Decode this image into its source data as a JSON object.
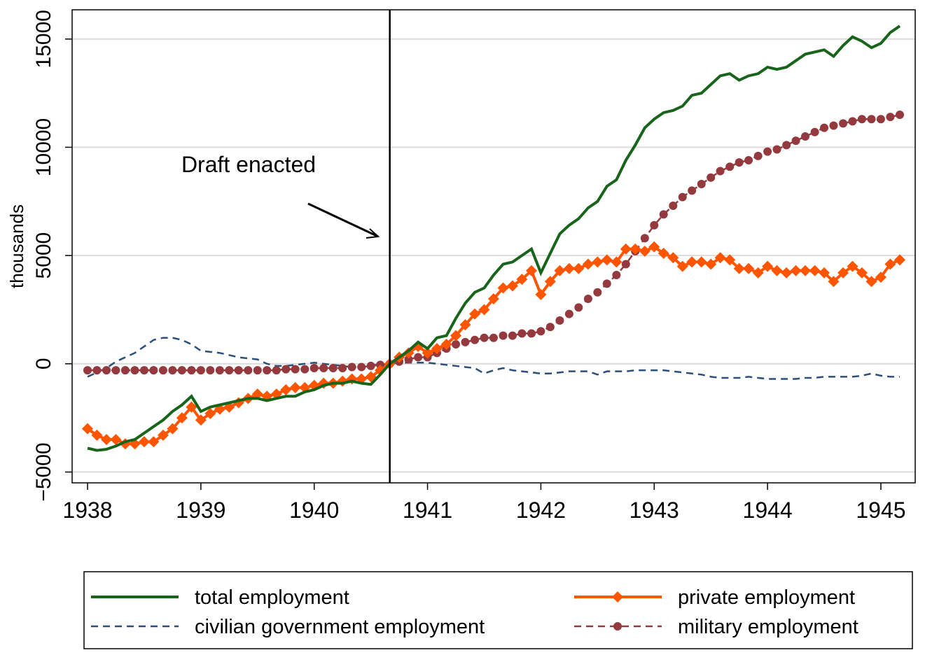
{
  "chart_data": {
    "type": "line",
    "y_label": "thousands",
    "annotation": "Draft enacted",
    "vline": 1940.667,
    "xlim": [
      1937.864,
      1945.303
    ],
    "ylim": [
      -5500,
      16350
    ],
    "xticks": [
      1938,
      1939,
      1940,
      1941,
      1942,
      1943,
      1944,
      1945
    ],
    "yticks": [
      {
        "value": -5000,
        "label": "−5000"
      },
      0,
      5000,
      10000,
      15000
    ],
    "grid": true,
    "legend": "bottom",
    "x": [
      1938,
      1938.083,
      1938.167,
      1938.25,
      1938.333,
      1938.417,
      1938.5,
      1938.583,
      1938.667,
      1938.75,
      1938.833,
      1938.917,
      1939,
      1939.083,
      1939.167,
      1939.25,
      1939.333,
      1939.417,
      1939.5,
      1939.583,
      1939.667,
      1939.75,
      1939.833,
      1939.917,
      1940,
      1940.083,
      1940.167,
      1940.25,
      1940.333,
      1940.417,
      1940.5,
      1940.583,
      1940.667,
      1940.75,
      1940.833,
      1940.917,
      1941,
      1941.083,
      1941.167,
      1941.25,
      1941.333,
      1941.417,
      1941.5,
      1941.583,
      1941.667,
      1941.75,
      1941.833,
      1941.917,
      1942,
      1942.083,
      1942.167,
      1942.25,
      1942.333,
      1942.417,
      1942.5,
      1942.583,
      1942.667,
      1942.75,
      1942.833,
      1942.917,
      1943,
      1943.083,
      1943.167,
      1943.25,
      1943.333,
      1943.417,
      1943.5,
      1943.583,
      1943.667,
      1943.75,
      1943.833,
      1943.917,
      1944,
      1944.083,
      1944.167,
      1944.25,
      1944.333,
      1944.417,
      1944.5,
      1944.583,
      1944.667,
      1944.75,
      1944.833,
      1944.917,
      1945,
      1945.083,
      1945.167
    ],
    "series": [
      {
        "name": "total employment",
        "color": "#17641a",
        "style": "solid",
        "marker": "none",
        "values": [
          -3900,
          -4000,
          -3950,
          -3800,
          -3600,
          -3500,
          -3200,
          -2900,
          -2600,
          -2200,
          -1900,
          -1500,
          -2200,
          -2000,
          -1900,
          -1800,
          -1700,
          -1600,
          -1600,
          -1700,
          -1600,
          -1500,
          -1500,
          -1300,
          -1200,
          -1000,
          -900,
          -900,
          -800,
          -900,
          -950,
          -500,
          0,
          300,
          600,
          1000,
          700,
          1200,
          1300,
          2100,
          2800,
          3300,
          3500,
          4100,
          4600,
          4700,
          5000,
          5300,
          4200,
          5100,
          6000,
          6400,
          6700,
          7200,
          7500,
          8200,
          8500,
          9400,
          10100,
          10900,
          11300,
          11600,
          11700,
          11900,
          12400,
          12500,
          12900,
          13300,
          13400,
          13100,
          13300,
          13400,
          13700,
          13600,
          13700,
          14000,
          14300,
          14400,
          14500,
          14200,
          14700,
          15100,
          14900,
          14600,
          14800,
          15300,
          15600
        ]
      },
      {
        "name": "private employment",
        "color": "#ff5500",
        "style": "solid",
        "marker": "diamond",
        "values": [
          -3000,
          -3300,
          -3500,
          -3500,
          -3700,
          -3700,
          -3600,
          -3600,
          -3300,
          -3000,
          -2500,
          -2000,
          -2600,
          -2300,
          -2100,
          -2000,
          -1800,
          -1600,
          -1400,
          -1500,
          -1400,
          -1200,
          -1100,
          -1100,
          -1000,
          -900,
          -900,
          -800,
          -700,
          -700,
          -600,
          -300,
          0,
          300,
          500,
          800,
          500,
          700,
          900,
          1300,
          1800,
          2300,
          2500,
          3000,
          3500,
          3600,
          3900,
          4300,
          3200,
          3800,
          4300,
          4400,
          4400,
          4600,
          4700,
          4800,
          4700,
          5300,
          5300,
          5200,
          5400,
          5100,
          4900,
          4500,
          4700,
          4700,
          4600,
          4900,
          4800,
          4400,
          4400,
          4200,
          4500,
          4300,
          4200,
          4300,
          4300,
          4300,
          4200,
          3800,
          4200,
          4500,
          4200,
          3800,
          4000,
          4600,
          4800
        ]
      },
      {
        "name": "civilian government employment",
        "color": "#2b4f7a",
        "style": "dashed",
        "marker": "none",
        "values": [
          -600,
          -400,
          -200,
          100,
          300,
          500,
          800,
          1100,
          1200,
          1200,
          1100,
          900,
          600,
          550,
          500,
          400,
          300,
          250,
          200,
          0,
          -100,
          -100,
          -50,
          0,
          50,
          0,
          -50,
          -100,
          -150,
          -100,
          -50,
          -50,
          0,
          50,
          50,
          50,
          50,
          0,
          -50,
          -100,
          -150,
          -200,
          -450,
          -300,
          -200,
          -300,
          -350,
          -400,
          -450,
          -450,
          -400,
          -350,
          -350,
          -350,
          -500,
          -350,
          -350,
          -350,
          -300,
          -300,
          -300,
          -300,
          -350,
          -400,
          -450,
          -500,
          -600,
          -650,
          -650,
          -650,
          -600,
          -650,
          -700,
          -700,
          -700,
          -700,
          -650,
          -650,
          -600,
          -600,
          -600,
          -600,
          -550,
          -450,
          -550,
          -600,
          -600
        ]
      },
      {
        "name": "military employment",
        "color": "#943a3e",
        "style": "dashed",
        "marker": "circle",
        "values": [
          -300,
          -300,
          -300,
          -300,
          -300,
          -300,
          -300,
          -300,
          -300,
          -300,
          -300,
          -300,
          -300,
          -300,
          -300,
          -300,
          -300,
          -300,
          -300,
          -300,
          -300,
          -250,
          -250,
          -250,
          -200,
          -200,
          -200,
          -200,
          -150,
          -150,
          -100,
          -50,
          0,
          100,
          200,
          300,
          300,
          500,
          700,
          900,
          1000,
          1100,
          1200,
          1200,
          1300,
          1300,
          1400,
          1400,
          1500,
          1700,
          2000,
          2300,
          2600,
          3000,
          3300,
          3700,
          4100,
          4600,
          5200,
          5800,
          6400,
          6900,
          7300,
          7700,
          8000,
          8300,
          8600,
          8900,
          9100,
          9300,
          9400,
          9600,
          9800,
          9900,
          10100,
          10300,
          10500,
          10700,
          10900,
          11000,
          11100,
          11200,
          11300,
          11300,
          11300,
          11400,
          11500
        ]
      }
    ]
  }
}
